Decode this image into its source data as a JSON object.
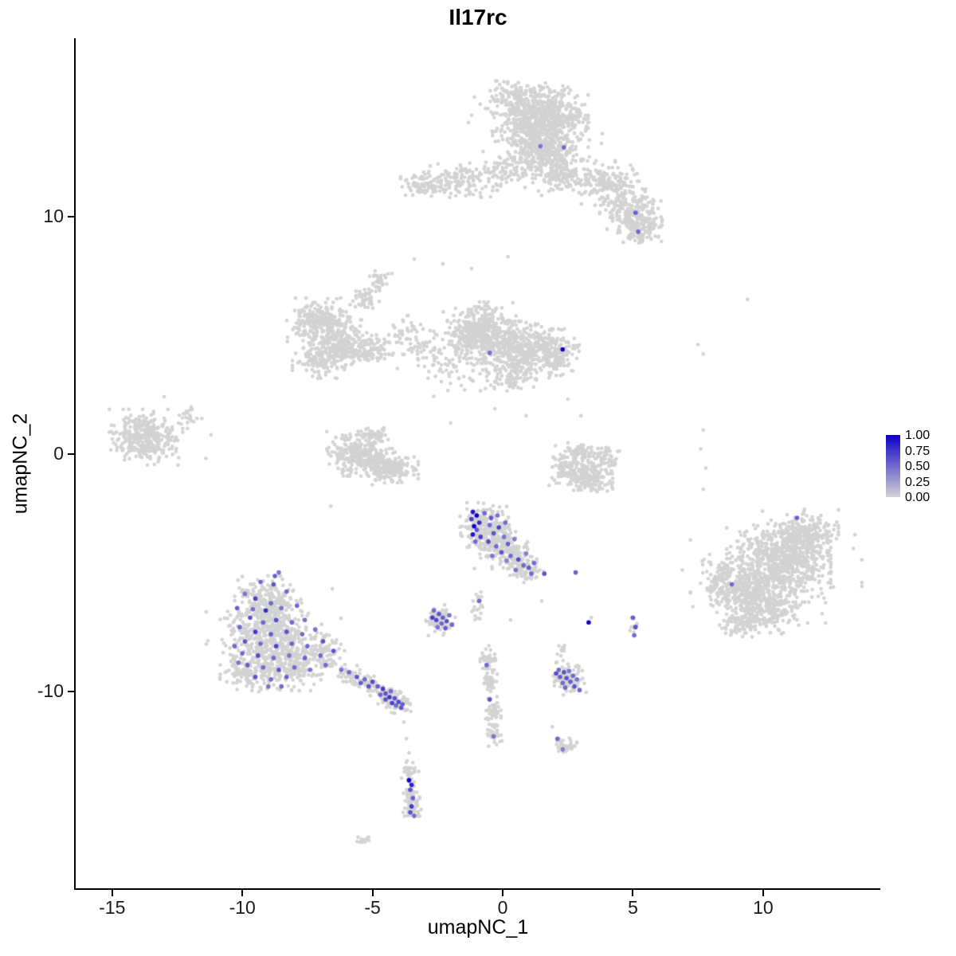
{
  "chart_data": {
    "type": "scatter",
    "title": "Il17rc",
    "xlabel": "umapNC_1",
    "ylabel": "umapNC_2",
    "x_domain": [
      -16.4,
      14.5
    ],
    "y_domain": [
      -18.3,
      17.5
    ],
    "grid": false,
    "background": "#ffffff",
    "point_color_low": "#d3d3d3",
    "point_color_high": "#0d00c8",
    "x_ticks": [
      {
        "value": -15,
        "label": "-15"
      },
      {
        "value": -10,
        "label": "-10"
      },
      {
        "value": -5,
        "label": "-5"
      },
      {
        "value": 0,
        "label": "0"
      },
      {
        "value": 5,
        "label": "5"
      },
      {
        "value": 10,
        "label": "10"
      }
    ],
    "y_ticks": [
      {
        "value": 10,
        "label": "10"
      },
      {
        "value": 0,
        "label": "0"
      },
      {
        "value": -10,
        "label": "-10"
      }
    ],
    "legend": {
      "position": "right",
      "labels": [
        "1.00",
        "0.75",
        "0.50",
        "0.25",
        "0.00"
      ]
    },
    "clusters": [
      {
        "x": 1.4,
        "y": 14.2,
        "sx": 0.8,
        "sy": 0.55,
        "n": 650
      },
      {
        "x": 1.6,
        "y": 12.8,
        "sx": 0.6,
        "sy": 0.45,
        "n": 300
      },
      {
        "x": 2.2,
        "y": 11.7,
        "sx": 0.45,
        "sy": 0.35,
        "n": 130
      },
      {
        "x": 0.3,
        "y": 15.0,
        "sx": 0.5,
        "sy": 0.3,
        "n": 90
      },
      {
        "x": 4.0,
        "y": 11.4,
        "sx": 0.5,
        "sy": 0.4,
        "n": 160
      },
      {
        "x": 4.9,
        "y": 10.3,
        "sx": 0.5,
        "sy": 0.5,
        "n": 220
      },
      {
        "x": 5.3,
        "y": 9.5,
        "sx": 0.35,
        "sy": 0.3,
        "n": 100
      },
      {
        "x": -1.6,
        "y": 11.5,
        "sx": 0.65,
        "sy": 0.3,
        "n": 130
      },
      {
        "x": -3.1,
        "y": 11.3,
        "sx": 0.35,
        "sy": 0.25,
        "n": 70
      },
      {
        "x": 0.1,
        "y": 11.9,
        "sx": 0.45,
        "sy": 0.3,
        "n": 80
      },
      {
        "x": 1.5,
        "y": 13.5,
        "sx": 1.2,
        "sy": 0.9,
        "n": 120
      },
      {
        "x": -0.9,
        "y": 5.1,
        "sx": 0.6,
        "sy": 0.55,
        "n": 450
      },
      {
        "x": 0.8,
        "y": 4.4,
        "sx": 0.65,
        "sy": 0.5,
        "n": 320
      },
      {
        "x": 2.0,
        "y": 4.2,
        "sx": 0.4,
        "sy": 0.45,
        "n": 140
      },
      {
        "x": 0.3,
        "y": 3.3,
        "sx": 0.5,
        "sy": 0.3,
        "n": 90
      },
      {
        "x": -0.3,
        "y": 4.3,
        "sx": 1.0,
        "sy": 0.8,
        "n": 80
      },
      {
        "x": -7.0,
        "y": 5.5,
        "sx": 0.55,
        "sy": 0.45,
        "n": 280
      },
      {
        "x": -6.1,
        "y": 4.7,
        "sx": 0.45,
        "sy": 0.4,
        "n": 180
      },
      {
        "x": -6.9,
        "y": 4.0,
        "sx": 0.5,
        "sy": 0.35,
        "n": 140
      },
      {
        "x": -5.1,
        "y": 4.3,
        "sx": 0.45,
        "sy": 0.3,
        "n": 90
      },
      {
        "x": -5.3,
        "y": 6.5,
        "sx": 0.25,
        "sy": 0.3,
        "n": 45
      },
      {
        "x": -4.7,
        "y": 7.3,
        "sx": 0.2,
        "sy": 0.25,
        "n": 30
      },
      {
        "x": -3.7,
        "y": 5.0,
        "sx": 0.45,
        "sy": 0.35,
        "n": 50
      },
      {
        "x": -2.9,
        "y": 4.2,
        "sx": 0.4,
        "sy": 0.4,
        "n": 40
      },
      {
        "x": -2.0,
        "y": 3.6,
        "sx": 0.5,
        "sy": 0.4,
        "n": 30
      },
      {
        "x": -13.7,
        "y": 0.7,
        "sx": 0.6,
        "sy": 0.5,
        "n": 330
      },
      {
        "x": -12.1,
        "y": 1.5,
        "sx": 0.25,
        "sy": 0.2,
        "n": 20
      },
      {
        "x": -5.7,
        "y": 0.0,
        "sx": 0.45,
        "sy": 0.4,
        "n": 220
      },
      {
        "x": -4.3,
        "y": -0.6,
        "sx": 0.45,
        "sy": 0.35,
        "n": 200
      },
      {
        "x": -5.0,
        "y": -0.3,
        "sx": 0.3,
        "sy": 0.25,
        "n": 70
      },
      {
        "x": -4.9,
        "y": 0.8,
        "sx": 0.3,
        "sy": 0.2,
        "n": 50
      },
      {
        "x": 2.6,
        "y": -0.6,
        "sx": 0.35,
        "sy": 0.4,
        "n": 130
      },
      {
        "x": 3.4,
        "y": -1.1,
        "sx": 0.35,
        "sy": 0.3,
        "n": 130
      },
      {
        "x": 3.9,
        "y": -0.3,
        "sx": 0.25,
        "sy": 0.3,
        "n": 70
      },
      {
        "x": 3.0,
        "y": 0.0,
        "sx": 0.3,
        "sy": 0.2,
        "n": 50
      },
      {
        "x": -0.7,
        "y": -3.0,
        "sx": 0.4,
        "sy": 0.4,
        "n": 230
      },
      {
        "x": -0.1,
        "y": -3.9,
        "sx": 0.45,
        "sy": 0.4,
        "n": 180
      },
      {
        "x": 0.6,
        "y": -4.6,
        "sx": 0.3,
        "sy": 0.3,
        "n": 90
      },
      {
        "x": 1.0,
        "y": -5.0,
        "sx": 0.25,
        "sy": 0.2,
        "n": 40
      },
      {
        "x": -9.0,
        "y": -6.2,
        "sx": 0.55,
        "sy": 0.45,
        "n": 220
      },
      {
        "x": -9.2,
        "y": -7.6,
        "sx": 0.7,
        "sy": 0.55,
        "n": 330
      },
      {
        "x": -8.3,
        "y": -8.8,
        "sx": 0.7,
        "sy": 0.5,
        "n": 280
      },
      {
        "x": -9.8,
        "y": -9.2,
        "sx": 0.45,
        "sy": 0.35,
        "n": 110
      },
      {
        "x": -6.9,
        "y": -8.3,
        "sx": 0.35,
        "sy": 0.4,
        "n": 90
      },
      {
        "x": -8.8,
        "y": -7.8,
        "sx": 1.1,
        "sy": 0.9,
        "n": 100
      },
      {
        "x": -5.9,
        "y": -9.3,
        "sx": 0.22,
        "sy": 0.18,
        "n": 45
      },
      {
        "x": -5.2,
        "y": -9.6,
        "sx": 0.25,
        "sy": 0.18,
        "n": 55
      },
      {
        "x": -4.5,
        "y": -10.1,
        "sx": 0.25,
        "sy": 0.2,
        "n": 75
      },
      {
        "x": -4.0,
        "y": -10.5,
        "sx": 0.2,
        "sy": 0.18,
        "n": 55
      },
      {
        "x": -2.4,
        "y": -7.0,
        "sx": 0.28,
        "sy": 0.28,
        "n": 75
      },
      {
        "x": -0.9,
        "y": -6.4,
        "sx": 0.12,
        "sy": 0.25,
        "n": 22
      },
      {
        "x": 2.5,
        "y": -9.5,
        "sx": 0.3,
        "sy": 0.28,
        "n": 95
      },
      {
        "x": 2.2,
        "y": -8.4,
        "sx": 0.15,
        "sy": 0.25,
        "n": 15
      },
      {
        "x": 10.6,
        "y": -4.6,
        "sx": 0.85,
        "sy": 0.7,
        "n": 650
      },
      {
        "x": 9.4,
        "y": -5.9,
        "sx": 0.6,
        "sy": 0.5,
        "n": 320
      },
      {
        "x": 11.6,
        "y": -3.4,
        "sx": 0.55,
        "sy": 0.45,
        "n": 230
      },
      {
        "x": 10.3,
        "y": -6.6,
        "sx": 0.5,
        "sy": 0.4,
        "n": 180
      },
      {
        "x": 8.3,
        "y": -5.3,
        "sx": 0.3,
        "sy": 0.45,
        "n": 90
      },
      {
        "x": 9.0,
        "y": -7.2,
        "sx": 0.3,
        "sy": 0.25,
        "n": 60
      },
      {
        "x": 10.5,
        "y": -5.0,
        "sx": 1.4,
        "sy": 1.1,
        "n": 120
      },
      {
        "x": -0.6,
        "y": -8.6,
        "sx": 0.14,
        "sy": 0.22,
        "n": 35
      },
      {
        "x": -0.5,
        "y": -9.6,
        "sx": 0.12,
        "sy": 0.3,
        "n": 40
      },
      {
        "x": -0.4,
        "y": -10.8,
        "sx": 0.14,
        "sy": 0.3,
        "n": 45
      },
      {
        "x": -0.3,
        "y": -11.8,
        "sx": 0.12,
        "sy": 0.22,
        "n": 28
      },
      {
        "x": 2.4,
        "y": -12.3,
        "sx": 0.22,
        "sy": 0.16,
        "n": 35
      },
      {
        "x": -3.6,
        "y": -13.4,
        "sx": 0.16,
        "sy": 0.22,
        "n": 35
      },
      {
        "x": -3.5,
        "y": -14.4,
        "sx": 0.14,
        "sy": 0.3,
        "n": 40
      },
      {
        "x": -3.45,
        "y": -15.05,
        "sx": 0.16,
        "sy": 0.18,
        "n": 28
      },
      {
        "x": -5.3,
        "y": -16.2,
        "sx": 0.16,
        "sy": 0.12,
        "n": 16
      },
      {
        "x": 5.05,
        "y": -7.3,
        "sx": 0.1,
        "sy": 0.35,
        "n": 12
      }
    ],
    "singles": [
      [
        -3.4,
        8.2
      ],
      [
        -2.3,
        8.0
      ],
      [
        -4.9,
        7.7
      ],
      [
        7.5,
        4.6
      ],
      [
        7.7,
        4.2
      ],
      [
        9.4,
        6.5
      ],
      [
        7.7,
        1.0
      ],
      [
        7.6,
        0.2
      ],
      [
        7.8,
        -0.6
      ],
      [
        7.7,
        -1.5
      ],
      [
        -11.2,
        0.8
      ],
      [
        -11.4,
        -0.2
      ],
      [
        3.0,
        1.6
      ],
      [
        2.5,
        2.3
      ],
      [
        0.9,
        1.6
      ],
      [
        -0.3,
        1.9
      ],
      [
        -2.0,
        1.3
      ],
      [
        -3.8,
        -11.3
      ],
      [
        -3.7,
        -12.0
      ],
      [
        -3.6,
        -12.6
      ],
      [
        1.9,
        -11.5
      ],
      [
        0.3,
        -7.0
      ],
      [
        1.5,
        -6.2
      ],
      [
        3.4,
        -6.9
      ],
      [
        6.9,
        -4.9
      ],
      [
        -6.6,
        -2.2
      ],
      [
        0.2,
        8.3
      ],
      [
        -1.2,
        7.8
      ],
      [
        -13.0,
        2.4
      ]
    ],
    "expressed": [
      [
        1.45,
        12.95,
        0.45
      ],
      [
        2.35,
        12.9,
        0.5
      ],
      [
        5.1,
        10.15,
        0.55
      ],
      [
        5.2,
        9.35,
        0.5
      ],
      [
        2.3,
        4.4,
        1.0
      ],
      [
        -0.5,
        4.25,
        0.45
      ],
      [
        11.3,
        -2.7,
        0.55
      ],
      [
        8.8,
        -5.5,
        0.5
      ],
      [
        3.3,
        -7.1,
        1.0
      ],
      [
        5.0,
        -6.9,
        0.55
      ],
      [
        5.1,
        -7.3,
        0.6
      ],
      [
        5.05,
        -7.65,
        0.5
      ],
      [
        -1.15,
        -2.45,
        0.9
      ],
      [
        -1.0,
        -2.6,
        1.0
      ],
      [
        -1.2,
        -2.75,
        0.7
      ],
      [
        -0.9,
        -2.9,
        0.8
      ],
      [
        -1.1,
        -3.05,
        1.0
      ],
      [
        -1.0,
        -3.2,
        0.6
      ],
      [
        -1.15,
        -3.4,
        0.9
      ],
      [
        -0.85,
        -3.5,
        0.7
      ],
      [
        -1.05,
        -3.7,
        0.5
      ],
      [
        -0.7,
        -2.5,
        0.5
      ],
      [
        -0.45,
        -2.7,
        0.6
      ],
      [
        -0.2,
        -2.6,
        0.45
      ],
      [
        -0.5,
        -3.0,
        0.5
      ],
      [
        -0.15,
        -3.1,
        0.7
      ],
      [
        0.1,
        -2.9,
        0.5
      ],
      [
        -0.35,
        -3.35,
        0.6
      ],
      [
        0.05,
        -3.5,
        0.45
      ],
      [
        -0.55,
        -3.7,
        0.65
      ],
      [
        -0.25,
        -3.9,
        0.5
      ],
      [
        0.2,
        -3.8,
        0.55
      ],
      [
        0.45,
        -3.6,
        0.4
      ],
      [
        -0.05,
        -4.15,
        0.6
      ],
      [
        0.3,
        -4.3,
        0.5
      ],
      [
        0.6,
        -4.45,
        0.65
      ],
      [
        0.8,
        -4.7,
        0.5
      ],
      [
        0.5,
        -4.9,
        0.45
      ],
      [
        1.0,
        -4.8,
        0.55
      ],
      [
        0.15,
        -4.5,
        0.4
      ],
      [
        -0.4,
        -4.3,
        0.45
      ],
      [
        1.1,
        -5.05,
        0.5
      ],
      [
        0.9,
        -4.2,
        0.4
      ],
      [
        1.2,
        -4.6,
        0.5
      ],
      [
        1.6,
        -5.05,
        0.6
      ],
      [
        2.8,
        -5.0,
        0.55
      ],
      [
        -9.3,
        -5.4,
        0.5
      ],
      [
        -8.8,
        -5.5,
        0.6
      ],
      [
        -9.9,
        -5.9,
        0.45
      ],
      [
        -8.3,
        -5.8,
        0.5
      ],
      [
        -9.5,
        -6.1,
        0.7
      ],
      [
        -8.9,
        -6.3,
        0.5
      ],
      [
        -10.2,
        -6.5,
        0.55
      ],
      [
        -9.1,
        -6.6,
        0.8
      ],
      [
        -8.5,
        -6.5,
        0.45
      ],
      [
        -7.9,
        -6.4,
        0.5
      ],
      [
        -9.7,
        -6.9,
        0.6
      ],
      [
        -9.2,
        -7.1,
        0.5
      ],
      [
        -8.7,
        -7.0,
        0.65
      ],
      [
        -8.1,
        -7.1,
        0.5
      ],
      [
        -7.6,
        -7.0,
        0.45
      ],
      [
        -10.1,
        -7.3,
        0.5
      ],
      [
        -9.5,
        -7.5,
        0.75
      ],
      [
        -8.9,
        -7.6,
        0.55
      ],
      [
        -8.3,
        -7.5,
        0.6
      ],
      [
        -7.7,
        -7.6,
        0.5
      ],
      [
        -7.2,
        -7.4,
        0.45
      ],
      [
        -9.9,
        -7.9,
        0.6
      ],
      [
        -9.3,
        -8.0,
        0.5
      ],
      [
        -8.7,
        -8.1,
        0.7
      ],
      [
        -8.1,
        -8.0,
        0.55
      ],
      [
        -7.5,
        -8.1,
        0.5
      ],
      [
        -6.9,
        -7.9,
        0.6
      ],
      [
        -10.0,
        -8.4,
        0.5
      ],
      [
        -9.4,
        -8.5,
        0.65
      ],
      [
        -8.8,
        -8.6,
        0.5
      ],
      [
        -8.2,
        -8.5,
        0.45
      ],
      [
        -7.6,
        -8.6,
        0.55
      ],
      [
        -7.0,
        -8.5,
        0.5
      ],
      [
        -6.5,
        -8.3,
        0.6
      ],
      [
        -9.8,
        -8.9,
        0.55
      ],
      [
        -9.2,
        -9.0,
        0.5
      ],
      [
        -8.6,
        -9.1,
        0.6
      ],
      [
        -8.0,
        -9.0,
        0.5
      ],
      [
        -7.4,
        -9.1,
        0.45
      ],
      [
        -6.8,
        -8.9,
        0.5
      ],
      [
        -9.5,
        -9.4,
        0.6
      ],
      [
        -8.9,
        -9.5,
        0.5
      ],
      [
        -8.3,
        -9.4,
        0.55
      ],
      [
        -9.0,
        -9.8,
        0.45
      ],
      [
        -8.5,
        -9.8,
        0.5
      ],
      [
        -8.6,
        -5.0,
        0.45
      ],
      [
        -8.75,
        -5.15,
        0.55
      ],
      [
        -9.6,
        -6.55,
        0.5
      ],
      [
        -10.3,
        -8.1,
        0.5
      ],
      [
        -10.15,
        -8.8,
        0.45
      ],
      [
        -5.9,
        -9.2,
        0.5
      ],
      [
        -5.6,
        -9.4,
        0.6
      ],
      [
        -5.3,
        -9.5,
        0.5
      ],
      [
        -5.0,
        -9.6,
        0.65
      ],
      [
        -4.8,
        -9.8,
        0.55
      ],
      [
        -4.6,
        -9.9,
        0.7
      ],
      [
        -4.5,
        -10.1,
        0.6
      ],
      [
        -4.3,
        -10.0,
        0.5
      ],
      [
        -4.35,
        -10.25,
        0.75
      ],
      [
        -4.15,
        -10.3,
        0.6
      ],
      [
        -4.0,
        -10.45,
        0.65
      ],
      [
        -3.85,
        -10.55,
        0.55
      ],
      [
        -4.25,
        -10.5,
        0.7
      ],
      [
        -4.5,
        -10.35,
        0.6
      ],
      [
        -4.7,
        -10.15,
        0.5
      ],
      [
        -6.2,
        -9.1,
        0.45
      ],
      [
        -5.45,
        -9.65,
        0.55
      ],
      [
        -5.15,
        -9.8,
        0.6
      ],
      [
        -3.9,
        -10.7,
        0.6
      ],
      [
        -4.1,
        -10.6,
        0.5
      ],
      [
        -2.65,
        -6.6,
        0.5
      ],
      [
        -2.45,
        -6.75,
        0.6
      ],
      [
        -2.3,
        -6.9,
        0.55
      ],
      [
        -2.55,
        -7.0,
        0.65
      ],
      [
        -2.35,
        -7.15,
        0.5
      ],
      [
        -2.15,
        -7.05,
        0.6
      ],
      [
        -2.5,
        -7.3,
        0.45
      ],
      [
        -2.2,
        -7.35,
        0.55
      ],
      [
        -1.95,
        -7.2,
        0.5
      ],
      [
        -2.7,
        -6.9,
        0.7
      ],
      [
        -2.05,
        -6.8,
        0.45
      ],
      [
        2.15,
        -9.1,
        0.5
      ],
      [
        2.35,
        -9.2,
        0.6
      ],
      [
        2.55,
        -9.15,
        0.45
      ],
      [
        2.2,
        -9.4,
        0.55
      ],
      [
        2.45,
        -9.45,
        0.6
      ],
      [
        2.7,
        -9.35,
        0.5
      ],
      [
        2.3,
        -9.65,
        0.5
      ],
      [
        2.6,
        -9.6,
        0.55
      ],
      [
        2.85,
        -9.5,
        0.45
      ],
      [
        2.4,
        -9.85,
        0.5
      ],
      [
        2.75,
        -9.8,
        0.6
      ],
      [
        2.95,
        -9.95,
        0.5
      ],
      [
        2.05,
        -9.25,
        0.65
      ],
      [
        -0.62,
        -8.9,
        0.5
      ],
      [
        -0.5,
        -10.35,
        0.6
      ],
      [
        -0.35,
        -11.9,
        0.45
      ],
      [
        -0.9,
        -6.2,
        0.5
      ],
      [
        2.1,
        -12.0,
        0.5
      ],
      [
        2.3,
        -12.45,
        0.4
      ],
      [
        -3.6,
        -13.75,
        1.0
      ],
      [
        -3.5,
        -13.95,
        0.85
      ],
      [
        -3.55,
        -14.15,
        0.6
      ],
      [
        -3.45,
        -14.5,
        0.55
      ],
      [
        -3.5,
        -14.85,
        0.7
      ],
      [
        -3.55,
        -15.1,
        0.6
      ],
      [
        -3.4,
        -15.25,
        0.5
      ]
    ]
  }
}
